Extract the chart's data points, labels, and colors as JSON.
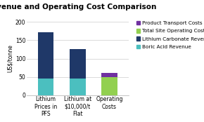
{
  "title": "Revenue and Operating Cost Comparison",
  "ylabel": "US$/tonne",
  "categories": [
    "Lithium\nPrices in\nPFS",
    "Lithium at\n$10,000/t\nFlat",
    "Operating\nCosts"
  ],
  "series": {
    "Boric Acid Revenue": [
      45,
      45,
      0
    ],
    "Lithium Carbonate Revenue": [
      127,
      80,
      0
    ],
    "Total Site Operating Costs": [
      0,
      0,
      50
    ],
    "Product Transport Costs": [
      0,
      0,
      10
    ]
  },
  "colors": {
    "Boric Acid Revenue": "#4bbfbf",
    "Lithium Carbonate Revenue": "#1f3868",
    "Total Site Operating Costs": "#92d050",
    "Product Transport Costs": "#7030a0"
  },
  "ylim": [
    0,
    200
  ],
  "yticks": [
    0,
    50,
    100,
    150,
    200
  ],
  "background_color": "#ffffff",
  "title_fontsize": 7.5,
  "axis_fontsize": 5.5,
  "legend_fontsize": 5.2,
  "bar_width": 0.5
}
